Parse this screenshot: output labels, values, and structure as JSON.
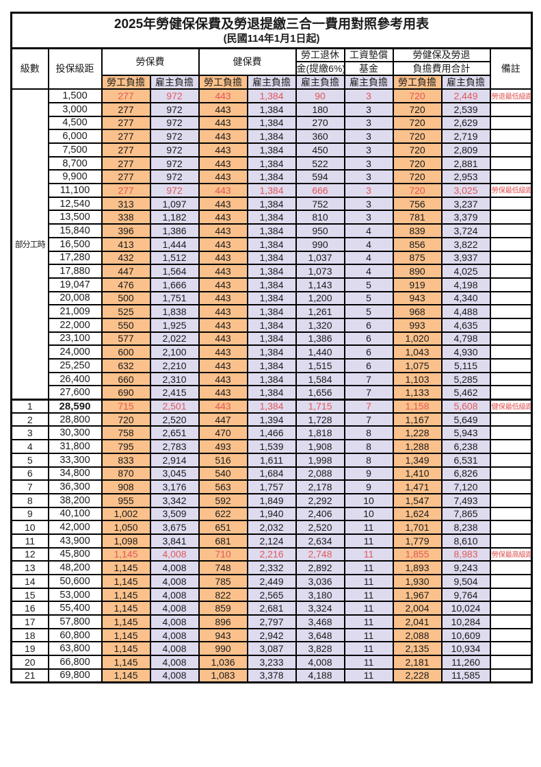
{
  "title": "2025年勞健保保費及勞退提繳三合一費用對照參考用表",
  "subtitle": "(民國114年1月1日起)",
  "columns": {
    "level": "級數",
    "wage": "投保級距",
    "labor_group": "勞保費",
    "health_group": "健保費",
    "pension_line1": "勞工退休",
    "pension_line2": "金(提繳6%)",
    "wage_fund_line1": "工資墊償",
    "wage_fund_line2": "基金",
    "total_line1": "勞健保及勞退",
    "total_line2": "負擔費用合計",
    "remark": "備註",
    "employee": "勞工負擔",
    "employer": "雇主負擔"
  },
  "part_time_label": "部分工時",
  "part_time_row_span": 23,
  "colors": {
    "employee_bg": "#FAC18C",
    "employer_bg": "#DEDBEF",
    "red_text": "#E25757",
    "border_color": "#000000"
  },
  "rows": [
    {
      "level": null,
      "wage": "1,500",
      "values": [
        "277",
        "972",
        "443",
        "1,384",
        "90",
        "3",
        "720",
        "2,449"
      ],
      "remark": "勞退最低級距",
      "red": true
    },
    {
      "level": null,
      "wage": "3,000",
      "values": [
        "277",
        "972",
        "443",
        "1,384",
        "180",
        "3",
        "720",
        "2,539"
      ],
      "remark": "",
      "red": false
    },
    {
      "level": null,
      "wage": "4,500",
      "values": [
        "277",
        "972",
        "443",
        "1,384",
        "270",
        "3",
        "720",
        "2,629"
      ],
      "remark": "",
      "red": false
    },
    {
      "level": null,
      "wage": "6,000",
      "values": [
        "277",
        "972",
        "443",
        "1,384",
        "360",
        "3",
        "720",
        "2,719"
      ],
      "remark": "",
      "red": false
    },
    {
      "level": null,
      "wage": "7,500",
      "values": [
        "277",
        "972",
        "443",
        "1,384",
        "450",
        "3",
        "720",
        "2,809"
      ],
      "remark": "",
      "red": false
    },
    {
      "level": null,
      "wage": "8,700",
      "values": [
        "277",
        "972",
        "443",
        "1,384",
        "522",
        "3",
        "720",
        "2,881"
      ],
      "remark": "",
      "red": false
    },
    {
      "level": null,
      "wage": "9,900",
      "values": [
        "277",
        "972",
        "443",
        "1,384",
        "594",
        "3",
        "720",
        "2,953"
      ],
      "remark": "",
      "red": false
    },
    {
      "level": null,
      "wage": "11,100",
      "values": [
        "277",
        "972",
        "443",
        "1,384",
        "666",
        "3",
        "720",
        "3,025"
      ],
      "remark": "勞保最低級距",
      "red": true
    },
    {
      "level": null,
      "wage": "12,540",
      "values": [
        "313",
        "1,097",
        "443",
        "1,384",
        "752",
        "3",
        "756",
        "3,237"
      ],
      "remark": "",
      "red": false
    },
    {
      "level": null,
      "wage": "13,500",
      "values": [
        "338",
        "1,182",
        "443",
        "1,384",
        "810",
        "3",
        "781",
        "3,379"
      ],
      "remark": "",
      "red": false
    },
    {
      "level": null,
      "wage": "15,840",
      "values": [
        "396",
        "1,386",
        "443",
        "1,384",
        "950",
        "4",
        "839",
        "3,724"
      ],
      "remark": "",
      "red": false
    },
    {
      "level": null,
      "wage": "16,500",
      "values": [
        "413",
        "1,444",
        "443",
        "1,384",
        "990",
        "4",
        "856",
        "3,822"
      ],
      "remark": "",
      "red": false
    },
    {
      "level": null,
      "wage": "17,280",
      "values": [
        "432",
        "1,512",
        "443",
        "1,384",
        "1,037",
        "4",
        "875",
        "3,937"
      ],
      "remark": "",
      "red": false
    },
    {
      "level": null,
      "wage": "17,880",
      "values": [
        "447",
        "1,564",
        "443",
        "1,384",
        "1,073",
        "4",
        "890",
        "4,025"
      ],
      "remark": "",
      "red": false
    },
    {
      "level": null,
      "wage": "19,047",
      "values": [
        "476",
        "1,666",
        "443",
        "1,384",
        "1,143",
        "5",
        "919",
        "4,198"
      ],
      "remark": "",
      "red": false
    },
    {
      "level": null,
      "wage": "20,008",
      "values": [
        "500",
        "1,751",
        "443",
        "1,384",
        "1,200",
        "5",
        "943",
        "4,340"
      ],
      "remark": "",
      "red": false
    },
    {
      "level": null,
      "wage": "21,009",
      "values": [
        "525",
        "1,838",
        "443",
        "1,384",
        "1,261",
        "5",
        "968",
        "4,488"
      ],
      "remark": "",
      "red": false
    },
    {
      "level": null,
      "wage": "22,000",
      "values": [
        "550",
        "1,925",
        "443",
        "1,384",
        "1,320",
        "6",
        "993",
        "4,635"
      ],
      "remark": "",
      "red": false
    },
    {
      "level": null,
      "wage": "23,100",
      "values": [
        "577",
        "2,022",
        "443",
        "1,384",
        "1,386",
        "6",
        "1,020",
        "4,798"
      ],
      "remark": "",
      "red": false
    },
    {
      "level": null,
      "wage": "24,000",
      "values": [
        "600",
        "2,100",
        "443",
        "1,384",
        "1,440",
        "6",
        "1,043",
        "4,930"
      ],
      "remark": "",
      "red": false
    },
    {
      "level": null,
      "wage": "25,250",
      "values": [
        "632",
        "2,210",
        "443",
        "1,384",
        "1,515",
        "6",
        "1,075",
        "5,115"
      ],
      "remark": "",
      "red": false
    },
    {
      "level": null,
      "wage": "26,400",
      "values": [
        "660",
        "2,310",
        "443",
        "1,384",
        "1,584",
        "7",
        "1,103",
        "5,285"
      ],
      "remark": "",
      "red": false
    },
    {
      "level": null,
      "wage": "27,600",
      "values": [
        "690",
        "2,415",
        "443",
        "1,384",
        "1,656",
        "7",
        "1,133",
        "5,462"
      ],
      "remark": "",
      "red": false
    },
    {
      "level": "1",
      "wage": "28,590",
      "values": [
        "715",
        "2,501",
        "443",
        "1,384",
        "1,715",
        "7",
        "1,158",
        "5,608"
      ],
      "remark": "健保最低級距",
      "red": true,
      "group_start": true,
      "big_wage": true
    },
    {
      "level": "2",
      "wage": "28,800",
      "values": [
        "720",
        "2,520",
        "447",
        "1,394",
        "1,728",
        "7",
        "1,167",
        "5,649"
      ],
      "remark": "",
      "red": false
    },
    {
      "level": "3",
      "wage": "30,300",
      "values": [
        "758",
        "2,651",
        "470",
        "1,466",
        "1,818",
        "8",
        "1,228",
        "5,943"
      ],
      "remark": "",
      "red": false
    },
    {
      "level": "4",
      "wage": "31,800",
      "values": [
        "795",
        "2,783",
        "493",
        "1,539",
        "1,908",
        "8",
        "1,288",
        "6,238"
      ],
      "remark": "",
      "red": false
    },
    {
      "level": "5",
      "wage": "33,300",
      "values": [
        "833",
        "2,914",
        "516",
        "1,611",
        "1,998",
        "8",
        "1,349",
        "6,531"
      ],
      "remark": "",
      "red": false
    },
    {
      "level": "6",
      "wage": "34,800",
      "values": [
        "870",
        "3,045",
        "540",
        "1,684",
        "2,088",
        "9",
        "1,410",
        "6,826"
      ],
      "remark": "",
      "red": false
    },
    {
      "level": "7",
      "wage": "36,300",
      "values": [
        "908",
        "3,176",
        "563",
        "1,757",
        "2,178",
        "9",
        "1,471",
        "7,120"
      ],
      "remark": "",
      "red": false
    },
    {
      "level": "8",
      "wage": "38,200",
      "values": [
        "955",
        "3,342",
        "592",
        "1,849",
        "2,292",
        "10",
        "1,547",
        "7,493"
      ],
      "remark": "",
      "red": false
    },
    {
      "level": "9",
      "wage": "40,100",
      "values": [
        "1,002",
        "3,509",
        "622",
        "1,940",
        "2,406",
        "10",
        "1,624",
        "7,865"
      ],
      "remark": "",
      "red": false
    },
    {
      "level": "10",
      "wage": "42,000",
      "values": [
        "1,050",
        "3,675",
        "651",
        "2,032",
        "2,520",
        "11",
        "1,701",
        "8,238"
      ],
      "remark": "",
      "red": false
    },
    {
      "level": "11",
      "wage": "43,900",
      "values": [
        "1,098",
        "3,841",
        "681",
        "2,124",
        "2,634",
        "11",
        "1,779",
        "8,610"
      ],
      "remark": "",
      "red": false
    },
    {
      "level": "12",
      "wage": "45,800",
      "values": [
        "1,145",
        "4,008",
        "710",
        "2,216",
        "2,748",
        "11",
        "1,855",
        "8,983"
      ],
      "remark": "勞保最高級距",
      "red": true,
      "big_wage": true
    },
    {
      "level": "13",
      "wage": "48,200",
      "values": [
        "1,145",
        "4,008",
        "748",
        "2,332",
        "2,892",
        "11",
        "1,893",
        "9,243"
      ],
      "remark": "",
      "red": false
    },
    {
      "level": "14",
      "wage": "50,600",
      "values": [
        "1,145",
        "4,008",
        "785",
        "2,449",
        "3,036",
        "11",
        "1,930",
        "9,504"
      ],
      "remark": "",
      "red": false
    },
    {
      "level": "15",
      "wage": "53,000",
      "values": [
        "1,145",
        "4,008",
        "822",
        "2,565",
        "3,180",
        "11",
        "1,967",
        "9,764"
      ],
      "remark": "",
      "red": false
    },
    {
      "level": "16",
      "wage": "55,400",
      "values": [
        "1,145",
        "4,008",
        "859",
        "2,681",
        "3,324",
        "11",
        "2,004",
        "10,024"
      ],
      "remark": "",
      "red": false
    },
    {
      "level": "17",
      "wage": "57,800",
      "values": [
        "1,145",
        "4,008",
        "896",
        "2,797",
        "3,468",
        "11",
        "2,041",
        "10,284"
      ],
      "remark": "",
      "red": false
    },
    {
      "level": "18",
      "wage": "60,800",
      "values": [
        "1,145",
        "4,008",
        "943",
        "2,942",
        "3,648",
        "11",
        "2,088",
        "10,609"
      ],
      "remark": "",
      "red": false
    },
    {
      "level": "19",
      "wage": "63,800",
      "values": [
        "1,145",
        "4,008",
        "990",
        "3,087",
        "3,828",
        "11",
        "2,135",
        "10,934"
      ],
      "remark": "",
      "red": false
    },
    {
      "level": "20",
      "wage": "66,800",
      "values": [
        "1,145",
        "4,008",
        "1,036",
        "3,233",
        "4,008",
        "11",
        "2,181",
        "11,260"
      ],
      "remark": "",
      "red": false
    },
    {
      "level": "21",
      "wage": "69,800",
      "values": [
        "1,145",
        "4,008",
        "1,083",
        "3,378",
        "4,188",
        "11",
        "2,228",
        "11,585"
      ],
      "remark": "",
      "red": false
    }
  ]
}
